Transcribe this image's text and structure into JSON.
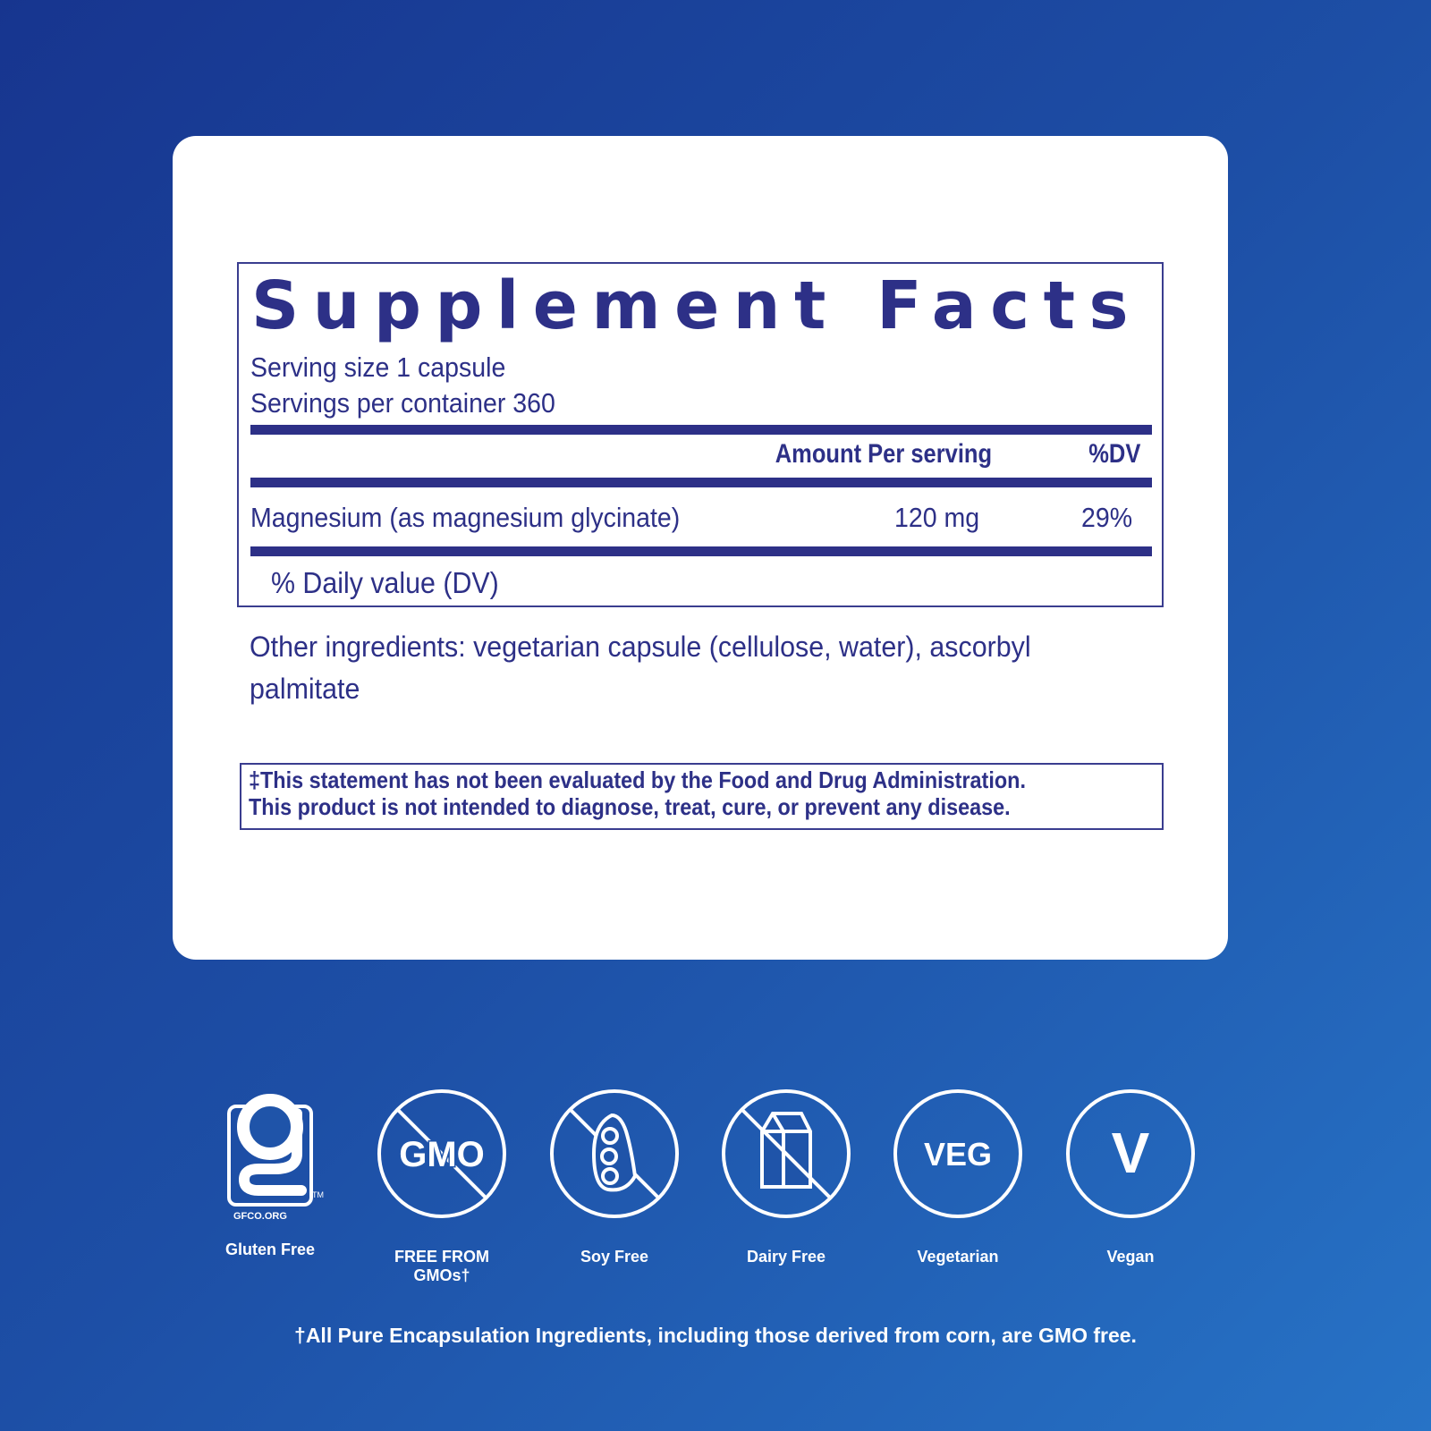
{
  "facts": {
    "title": "Supplement Facts",
    "serving_size": "Serving size  1 capsule",
    "servings_per_container": "Servings per container  360",
    "col_amount": "Amount Per serving",
    "col_dv": "%DV",
    "rows": [
      {
        "name": "Magnesium (as magnesium glycinate)",
        "amount": "120 mg",
        "dv": "29%"
      }
    ],
    "dv_note": "% Daily value (DV)"
  },
  "other_ingredients": "Other ingredients: vegetarian capsule (cellulose, water), ascorbyl palmitate",
  "disclaimer": {
    "line1": "‡This statement has not been evaluated by the Food and Drug Administration.",
    "line2": "This product is not intended to diagnose, treat, cure, or prevent any disease."
  },
  "badges": [
    {
      "icon": "gluten-free-icon",
      "label": "Gluten Free",
      "mark": "GFCO.ORG",
      "tm": "TM"
    },
    {
      "icon": "no-gmo-icon",
      "label": "FREE FROM GMOs†",
      "mark": "GMO"
    },
    {
      "icon": "soy-free-icon",
      "label": "Soy Free"
    },
    {
      "icon": "dairy-free-icon",
      "label": "Dairy Free"
    },
    {
      "icon": "veg-icon",
      "label": "Vegetarian",
      "mark": "VEG"
    },
    {
      "icon": "vegan-icon",
      "label": "Vegan",
      "mark": "V"
    }
  ],
  "footnote": "†All Pure Encapsulation Ingredients, including those derived from corn, are GMO free.",
  "colors": {
    "label_navy": "#2d3087",
    "bg_start": "#17358f",
    "bg_end": "#2773c6"
  }
}
